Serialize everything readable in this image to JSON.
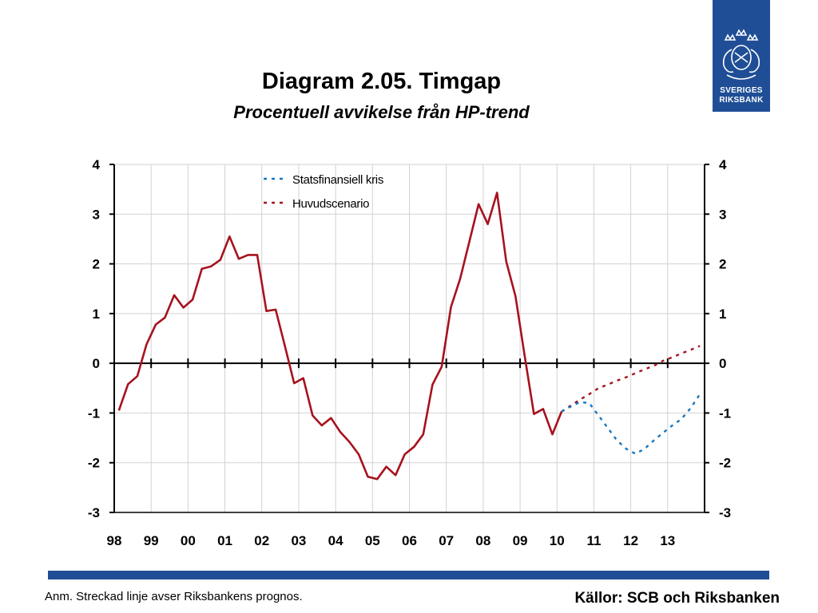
{
  "title": "Diagram 2.05. Timgap",
  "subtitle": "Procentuell avvikelse från HP-trend",
  "logo": {
    "line1": "SVERIGES",
    "line2": "RIKSBANK",
    "icon": "riksbank-crest-icon"
  },
  "footnote": "Anm. Streckad linje avser Riksbankens prognos.",
  "sources": "Källor: SCB och Riksbanken",
  "colors": {
    "accent": "#1f4e96",
    "main": "#a6121e",
    "crisis": "#1777c0"
  },
  "chart_data": {
    "type": "line",
    "ylim": [
      -3,
      4
    ],
    "yticks": [
      4,
      3,
      2,
      1,
      0,
      -1,
      -2,
      -3
    ],
    "xlim": [
      1998,
      2014
    ],
    "xticks": [
      "98",
      "99",
      "00",
      "01",
      "02",
      "03",
      "04",
      "05",
      "06",
      "07",
      "08",
      "09",
      "10",
      "11",
      "12",
      "13"
    ],
    "grid": true,
    "legend_position": "top",
    "series": [
      {
        "name": "Huvudscenario",
        "style": "solid",
        "color": "#a6121e",
        "x": [
          1998.125,
          1998.375,
          1998.625,
          1998.875,
          1999.125,
          1999.375,
          1999.625,
          1999.875,
          2000.125,
          2000.375,
          2000.625,
          2000.875,
          2001.125,
          2001.375,
          2001.625,
          2001.875,
          2002.125,
          2002.375,
          2002.625,
          2002.875,
          2003.125,
          2003.375,
          2003.625,
          2003.875,
          2004.125,
          2004.375,
          2004.625,
          2004.875,
          2005.125,
          2005.375,
          2005.625,
          2005.875,
          2006.125,
          2006.375,
          2006.625,
          2006.875,
          2007.125,
          2007.375,
          2007.625,
          2007.875,
          2008.125,
          2008.375,
          2008.625,
          2008.875,
          2009.125,
          2009.375,
          2009.625,
          2009.875,
          2010.125
        ],
        "y": [
          -0.95,
          -0.42,
          -0.26,
          0.38,
          0.78,
          0.92,
          1.37,
          1.12,
          1.28,
          1.9,
          1.95,
          2.08,
          2.55,
          2.1,
          2.18,
          2.18,
          1.05,
          1.08,
          0.35,
          -0.4,
          -0.3,
          -1.05,
          -1.25,
          -1.1,
          -1.38,
          -1.58,
          -1.83,
          -2.28,
          -2.33,
          -2.08,
          -2.25,
          -1.83,
          -1.68,
          -1.43,
          -0.43,
          -0.07,
          1.13,
          1.7,
          2.45,
          3.2,
          2.8,
          3.43,
          2.05,
          1.35,
          0.15,
          -1.02,
          -0.92,
          -1.43,
          -0.97
        ]
      },
      {
        "name": "Huvudscenario",
        "style": "dashed",
        "color": "#a6121e",
        "x": [
          2010.125,
          2010.375,
          2010.625,
          2010.875,
          2011.125,
          2011.375,
          2011.625,
          2011.875,
          2012.125,
          2012.375,
          2012.625,
          2012.875,
          2013.125,
          2013.375,
          2013.625,
          2013.875
        ],
        "y": [
          -0.97,
          -0.85,
          -0.73,
          -0.62,
          -0.5,
          -0.43,
          -0.35,
          -0.28,
          -0.2,
          -0.12,
          -0.05,
          0.05,
          0.12,
          0.2,
          0.27,
          0.35
        ]
      },
      {
        "name": "Statsfinansiell kris",
        "style": "dashed",
        "color": "#1777c0",
        "x": [
          2010.125,
          2010.375,
          2010.625,
          2010.875,
          2011.125,
          2011.375,
          2011.625,
          2011.875,
          2012.125,
          2012.375,
          2012.625,
          2012.875,
          2013.125,
          2013.375,
          2013.625,
          2013.875
        ],
        "y": [
          -0.97,
          -0.87,
          -0.78,
          -0.8,
          -1.05,
          -1.3,
          -1.55,
          -1.72,
          -1.82,
          -1.72,
          -1.55,
          -1.4,
          -1.25,
          -1.12,
          -0.9,
          -0.62
        ]
      }
    ],
    "legend": [
      {
        "label": "Statsfinansiell kris",
        "color": "#1777c0"
      },
      {
        "label": "Huvudscenario",
        "color": "#a6121e"
      }
    ]
  }
}
